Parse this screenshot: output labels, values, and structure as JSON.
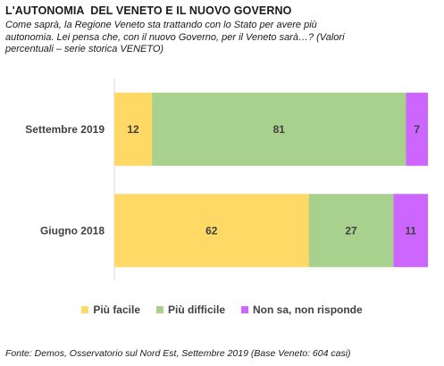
{
  "title": "L'AUTONOMIA  DEL VENETO E IL NUOVO GOVERNO",
  "subtitle": "Come saprà, la Regione Veneto sta trattando con lo Stato per avere più autonomia. Lei pensa che, con il nuovo Governo, per il Veneto sarà…? (Valori percentuali – serie storica VENETO)",
  "source": "Fonte: Demos, Osservatorio sul Nord Est, Settembre 2019 (Base Veneto: 604 casi)",
  "chart_data": {
    "type": "bar",
    "orientation": "horizontal",
    "stacked": true,
    "categories": [
      "Settembre 2019",
      "Giugno 2018"
    ],
    "series": [
      {
        "name": "Più facile",
        "values": [
          12,
          62
        ],
        "color": "#ffd966"
      },
      {
        "name": "Più difficile",
        "values": [
          81,
          27
        ],
        "color": "#a9d18e"
      },
      {
        "name": "Non sa, non risponde",
        "values": [
          7,
          11
        ],
        "color": "#cc66ff"
      }
    ],
    "xlim": [
      0,
      100
    ],
    "grid": false,
    "legend_position": "bottom"
  }
}
